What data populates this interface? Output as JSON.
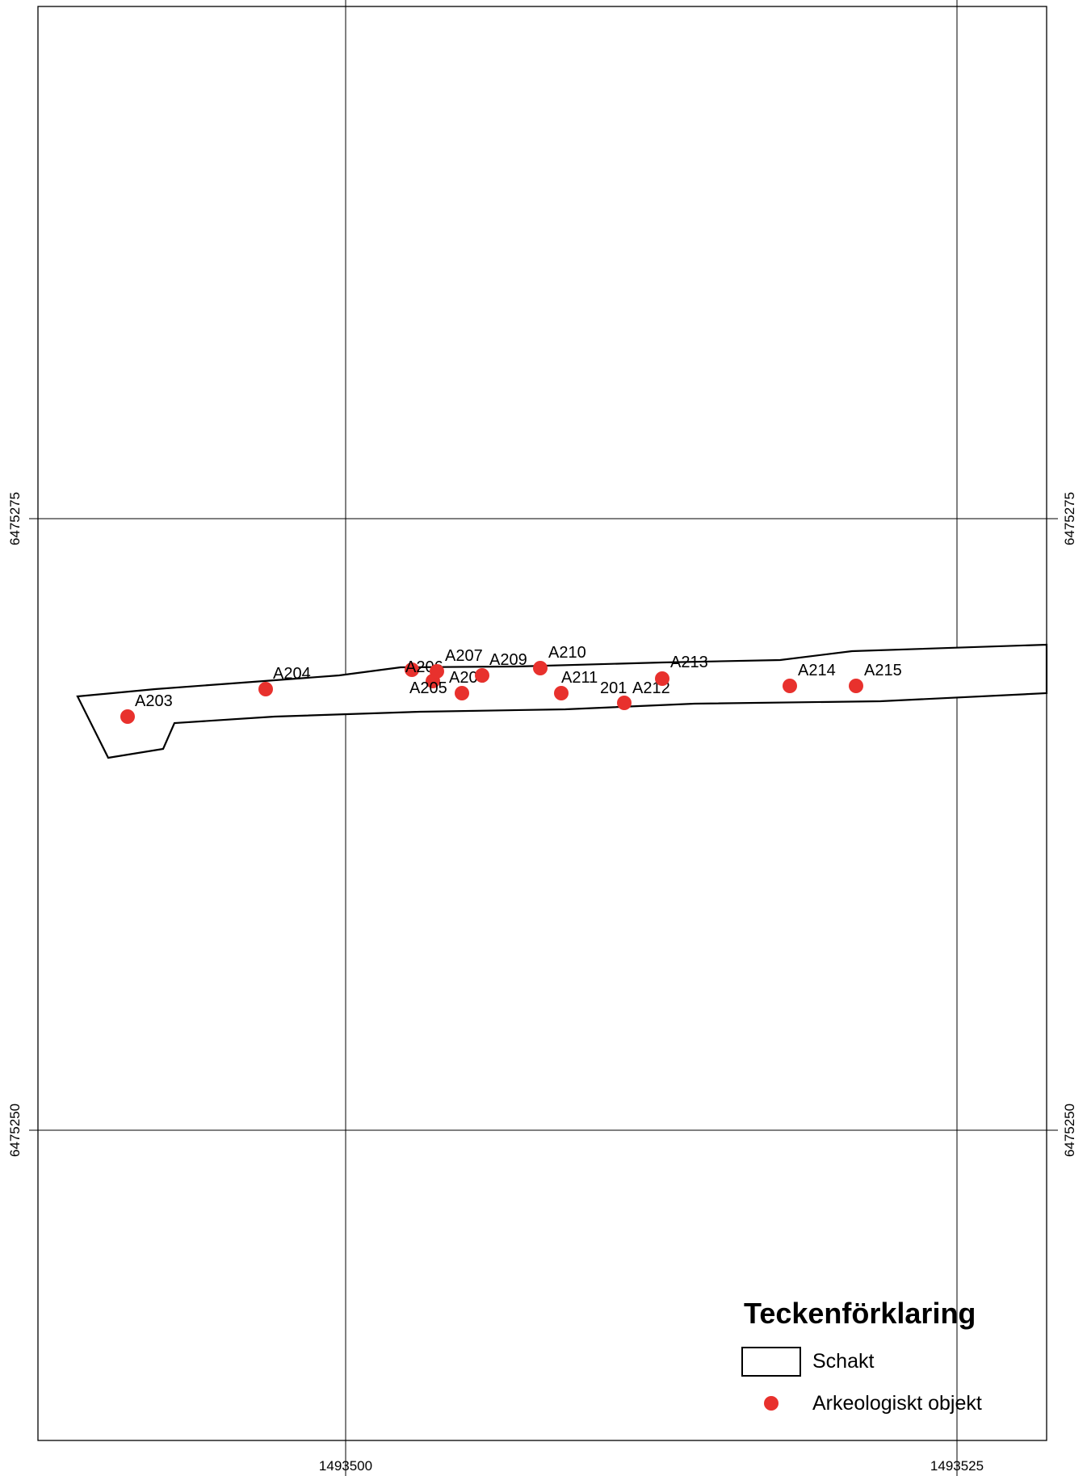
{
  "colors": {
    "object_fill": "#e8312d",
    "outline": "#000000",
    "background": "#ffffff"
  },
  "grid": {
    "x_labels": [
      "1493500",
      "1493525"
    ],
    "y_labels": [
      "6475275",
      "6475250"
    ]
  },
  "objects": [
    {
      "label": "A203"
    },
    {
      "label": "A204"
    },
    {
      "label": "A205"
    },
    {
      "label": "A206"
    },
    {
      "label": "A207"
    },
    {
      "label": "A208"
    },
    {
      "label": "A209"
    },
    {
      "label": "A210"
    },
    {
      "label": "A211"
    },
    {
      "label": "201"
    },
    {
      "label": "A212"
    },
    {
      "label": "A213"
    },
    {
      "label": "A214"
    },
    {
      "label": "A215"
    }
  ],
  "legend": {
    "title": "Teckenförklaring",
    "items": [
      {
        "label": "Schakt",
        "icon": "polygon-outline-icon"
      },
      {
        "label": "Arkeologiskt objekt",
        "icon": "red-dot-icon"
      }
    ]
  }
}
